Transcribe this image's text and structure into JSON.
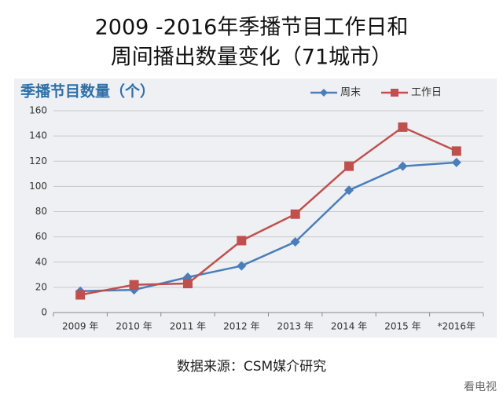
{
  "chart_data": {
    "type": "line",
    "title": [
      "2009 -2016年季播节目工作日和",
      "周间播出数量变化（71城市）"
    ],
    "ylabel": "季播节目数量（个）",
    "categories": [
      "2009 年",
      "2010 年",
      "2011 年",
      "2012 年",
      "2013 年",
      "2014 年",
      "2015 年",
      "*2016年"
    ],
    "series": [
      {
        "name": "周末",
        "color": "#4a7ebb",
        "marker": "diamond",
        "values": [
          17,
          18,
          28,
          37,
          56,
          97,
          116,
          119
        ]
      },
      {
        "name": "工作日",
        "color": "#c0504d",
        "marker": "square",
        "values": [
          14,
          22,
          23,
          57,
          78,
          116,
          147,
          128
        ]
      }
    ],
    "ylim": [
      0,
      160
    ],
    "yticks": [
      0,
      20,
      40,
      60,
      80,
      100,
      120,
      140,
      160
    ],
    "grid": true,
    "legend": "top-right",
    "source": "数据来源：CSM媒介研究",
    "watermark": "看电视"
  }
}
